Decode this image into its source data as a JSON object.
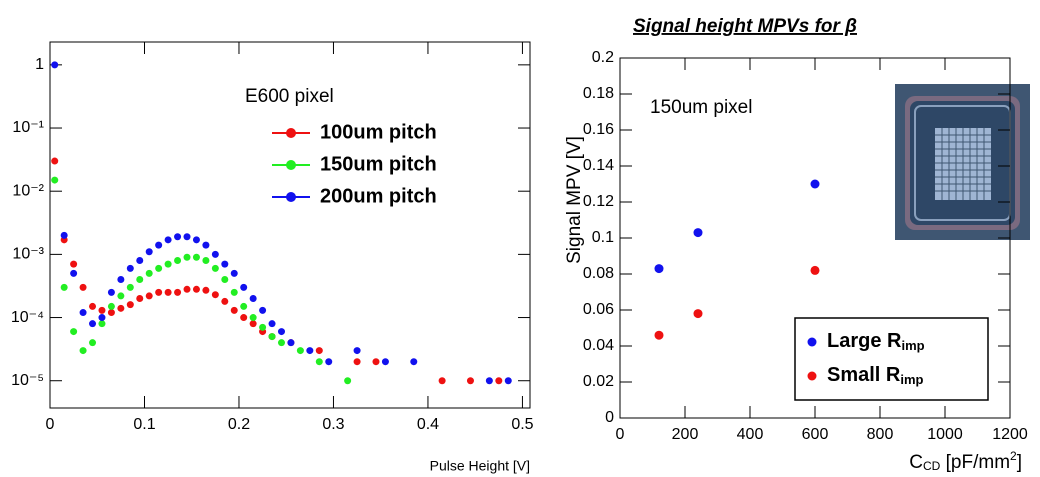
{
  "chart_data": [
    {
      "type": "scatter",
      "annotation": "E600 pixel",
      "x_label": "Pulse Height [V]",
      "log_y": true,
      "legend": true,
      "xlim": [
        0,
        0.508
      ],
      "xticks": [
        0,
        0.1,
        0.2,
        0.3,
        0.4,
        0.5
      ],
      "ylim": [
        3.7e-06,
        2.3
      ],
      "yticks": [
        1,
        {
          "value": 0.1,
          "label": "10⁻¹"
        },
        {
          "value": 0.01,
          "label": "10⁻²"
        },
        {
          "value": 0.001,
          "label": "10⁻³"
        },
        {
          "value": 0.0001,
          "label": "10⁻⁴"
        },
        {
          "value": 1e-05,
          "label": "10⁻⁵"
        }
      ],
      "series": [
        {
          "name": "100um pitch",
          "color": "#ee1111",
          "x": [
            0.005,
            0.015,
            0.025,
            0.035,
            0.045,
            0.055,
            0.065,
            0.075,
            0.085,
            0.095,
            0.105,
            0.115,
            0.125,
            0.135,
            0.145,
            0.155,
            0.165,
            0.175,
            0.185,
            0.195,
            0.205,
            0.215,
            0.225,
            0.235,
            0.255,
            0.285,
            0.325,
            0.345,
            0.415,
            0.445,
            0.475
          ],
          "values": [
            0.03,
            0.0017,
            0.0007,
            0.0003,
            0.00015,
            0.00013,
            0.00012,
            0.00014,
            0.00016,
            0.0002,
            0.00022,
            0.00025,
            0.00025,
            0.00025,
            0.00028,
            0.00028,
            0.00027,
            0.00023,
            0.00018,
            0.00013,
            0.0001,
            8e-05,
            6e-05,
            5e-05,
            4e-05,
            3e-05,
            2e-05,
            2e-05,
            1e-05,
            1e-05,
            1e-05
          ]
        },
        {
          "name": "150um pitch",
          "color": "#22ee22",
          "x": [
            0.005,
            0.015,
            0.025,
            0.035,
            0.045,
            0.055,
            0.065,
            0.075,
            0.085,
            0.095,
            0.105,
            0.115,
            0.125,
            0.135,
            0.145,
            0.155,
            0.165,
            0.175,
            0.185,
            0.195,
            0.205,
            0.215,
            0.225,
            0.235,
            0.245,
            0.265,
            0.285,
            0.315
          ],
          "values": [
            0.015,
            0.0003,
            6e-05,
            3e-05,
            4e-05,
            8e-05,
            0.00015,
            0.00022,
            0.0003,
            0.0004,
            0.0005,
            0.0006,
            0.0007,
            0.0008,
            0.0009,
            0.0009,
            0.0008,
            0.0006,
            0.0004,
            0.00025,
            0.00015,
            0.0001,
            7e-05,
            5e-05,
            4e-05,
            3e-05,
            2e-05,
            1e-05
          ]
        },
        {
          "name": "200um pitch",
          "color": "#1111ee",
          "x": [
            0.005,
            0.015,
            0.025,
            0.035,
            0.045,
            0.055,
            0.065,
            0.075,
            0.085,
            0.095,
            0.105,
            0.115,
            0.125,
            0.135,
            0.145,
            0.155,
            0.165,
            0.175,
            0.185,
            0.195,
            0.205,
            0.215,
            0.225,
            0.235,
            0.245,
            0.255,
            0.275,
            0.295,
            0.325,
            0.355,
            0.385,
            0.465,
            0.485
          ],
          "values": [
            1,
            0.002,
            0.0005,
            0.00012,
            8e-05,
            0.0001,
            0.00025,
            0.0004,
            0.0006,
            0.0008,
            0.0011,
            0.0014,
            0.0017,
            0.0019,
            0.0019,
            0.0017,
            0.0014,
            0.001,
            0.0007,
            0.0005,
            0.0003,
            0.0002,
            0.00013,
            8e-05,
            6e-05,
            4e-05,
            3e-05,
            2e-05,
            3e-05,
            2e-05,
            2e-05,
            1e-05,
            1e-05
          ]
        }
      ]
    },
    {
      "type": "scatter",
      "title": "Signal height MPVs for β",
      "annotation": "150um pixel",
      "y_label": "Signal MPV [V]",
      "x_label": {
        "main": "C",
        "sub": "CD",
        "rest": " [pF/mm",
        "sup": "2",
        "end": "]"
      },
      "legend": true,
      "xlim": [
        0,
        1200
      ],
      "xticks": [
        0,
        200,
        400,
        600,
        800,
        1000,
        1200
      ],
      "ylim": [
        0,
        0.2
      ],
      "yticks": [
        0,
        0.02,
        0.04,
        0.06,
        0.08,
        0.1,
        0.12,
        0.14,
        0.16,
        0.18,
        0.2
      ],
      "series": [
        {
          "name": "Large R",
          "name_sub": "imp",
          "color": "#1111ee",
          "x": [
            120,
            240,
            600
          ],
          "values": [
            0.083,
            0.103,
            0.13
          ]
        },
        {
          "name": "Small R",
          "name_sub": "imp",
          "color": "#ee1111",
          "x": [
            120,
            240,
            600
          ],
          "values": [
            0.046,
            0.058,
            0.082
          ]
        }
      ]
    }
  ]
}
